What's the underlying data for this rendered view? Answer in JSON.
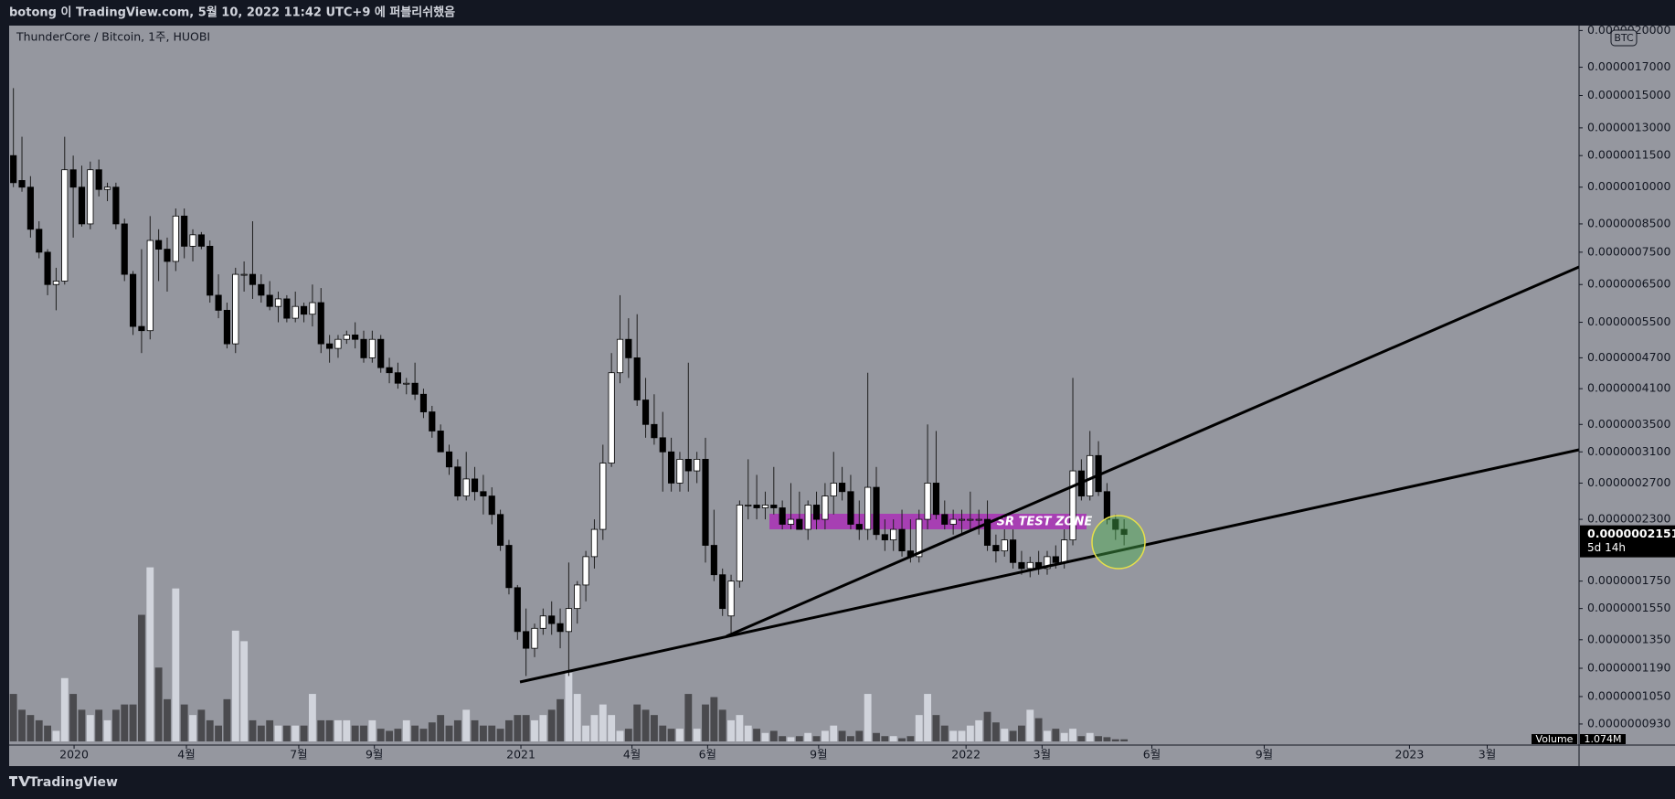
{
  "header": {
    "publish_line": "botong 이 TradingView.com, 5월 10, 2022 11:42 UTC+9 에 퍼블리쉬했음"
  },
  "footer": {
    "brand": "TradingView"
  },
  "chart_data": {
    "type": "candlestick",
    "legend_title": "ThunderCore / Bitcoin, 1주, HUOBI",
    "currency_badge": "BTC",
    "annotation": "SR TEST ZONE",
    "log_scale": true,
    "grid": false,
    "up_color": "#ffffff",
    "down_color": "#000000",
    "wick_color": "#1e1e1e",
    "volume_up_color": "#d1d4dc",
    "volume_down_color": "#4a4a4e",
    "xlim": [
      -0.5,
      183.25
    ],
    "xticks": [
      {
        "value": 7.1,
        "label": "2020"
      },
      {
        "value": 20.25,
        "label": "4월"
      },
      {
        "value": 33.4,
        "label": "7월"
      },
      {
        "value": 42.25,
        "label": "9월"
      },
      {
        "value": 59.4,
        "label": "2021"
      },
      {
        "value": 72.4,
        "label": "4월"
      },
      {
        "value": 81.25,
        "label": "6월"
      },
      {
        "value": 94.25,
        "label": "9월"
      },
      {
        "value": 111.5,
        "label": "2022"
      },
      {
        "value": 120.4,
        "label": "3월"
      },
      {
        "value": 133.25,
        "label": "6월"
      },
      {
        "value": 146.4,
        "label": "9월"
      },
      {
        "value": 163.4,
        "label": "2023"
      },
      {
        "value": 172.5,
        "label": "3월"
      }
    ],
    "ylim": [
      8.61e-08,
      2.044e-06
    ],
    "yticks": [
      {
        "value": 2e-06,
        "label": "0.0000020000"
      },
      {
        "value": 1.7e-06,
        "label": "0.0000017000"
      },
      {
        "value": 1.5e-06,
        "label": "0.0000015000"
      },
      {
        "value": 1.3e-06,
        "label": "0.0000013000"
      },
      {
        "value": 1.15e-06,
        "label": "0.0000011500"
      },
      {
        "value": 1e-06,
        "label": "0.0000010000"
      },
      {
        "value": 8.5e-07,
        "label": "0.0000008500"
      },
      {
        "value": 7.5e-07,
        "label": "0.0000007500"
      },
      {
        "value": 6.5e-07,
        "label": "0.0000006500"
      },
      {
        "value": 5.5e-07,
        "label": "0.0000005500"
      },
      {
        "value": 4.7e-07,
        "label": "0.0000004700"
      },
      {
        "value": 4.1e-07,
        "label": "0.0000004100"
      },
      {
        "value": 3.5e-07,
        "label": "0.0000003500"
      },
      {
        "value": 3.1e-07,
        "label": "0.0000003100"
      },
      {
        "value": 2.7e-07,
        "label": "0.0000002700"
      },
      {
        "value": 2.3e-07,
        "label": "0.0000002300"
      },
      {
        "value": 1.75e-07,
        "label": "0.0000001750"
      },
      {
        "value": 1.55e-07,
        "label": "0.0000001550"
      },
      {
        "value": 1.35e-07,
        "label": "0.0000001350"
      },
      {
        "value": 1.19e-07,
        "label": "0.0000001190"
      },
      {
        "value": 1.05e-07,
        "label": "0.0000001050"
      },
      {
        "value": 9.3e-08,
        "label": "0.0000000930"
      }
    ],
    "last_price": {
      "value": 2.151e-07,
      "label": "0.0000002151"
    },
    "countdown": "5d 14h",
    "volume_title": "Volume",
    "volume_last": {
      "value": 1074000.0,
      "label": "1.074M"
    },
    "vlim": [
      0,
      95000000.0
    ],
    "ohlc": [
      [
        1.15e-06,
        1.55e-06,
        1e-06,
        1.02e-06
      ],
      [
        1.03e-06,
        1.25e-06,
        9.8e-07,
        1e-06
      ],
      [
        1e-06,
        1.05e-06,
        8e-07,
        8.3e-07
      ],
      [
        8.3e-07,
        8.6e-07,
        7.3e-07,
        7.5e-07
      ],
      [
        7.5e-07,
        7.6e-07,
        6.2e-07,
        6.5e-07
      ],
      [
        6.5e-07,
        7e-07,
        5.8e-07,
        6.6e-07
      ],
      [
        6.6e-07,
        1.25e-06,
        6.5e-07,
        1.08e-06
      ],
      [
        1.08e-06,
        1.15e-06,
        8e-07,
        1e-06
      ],
      [
        1e-06,
        1.1e-06,
        8.4e-07,
        8.5e-07
      ],
      [
        8.5e-07,
        1.12e-06,
        8.3e-07,
        1.08e-06
      ],
      [
        1.08e-06,
        1.13e-06,
        9.6e-07,
        9.9e-07
      ],
      [
        9.9e-07,
        1.02e-06,
        9.4e-07,
        1e-06
      ],
      [
        1e-06,
        1.02e-06,
        8.3e-07,
        8.5e-07
      ],
      [
        8.5e-07,
        8.7e-07,
        6.6e-07,
        6.8e-07
      ],
      [
        6.8e-07,
        6.9e-07,
        5.2e-07,
        5.4e-07
      ],
      [
        5.4e-07,
        7.6e-07,
        4.8e-07,
        5.3e-07
      ],
      [
        5.3e-07,
        8.8e-07,
        5.1e-07,
        7.9e-07
      ],
      [
        7.9e-07,
        8.3e-07,
        6.6e-07,
        7.6e-07
      ],
      [
        7.6e-07,
        8e-07,
        6.3e-07,
        7.2e-07
      ],
      [
        7.2e-07,
        9.1e-07,
        6.9e-07,
        8.8e-07
      ],
      [
        8.8e-07,
        9.1e-07,
        7.3e-07,
        7.7e-07
      ],
      [
        7.7e-07,
        8.3e-07,
        7.2e-07,
        8.1e-07
      ],
      [
        8.1e-07,
        8.2e-07,
        7.6e-07,
        7.7e-07
      ],
      [
        7.7e-07,
        7.9e-07,
        6e-07,
        6.2e-07
      ],
      [
        6.2e-07,
        6.8e-07,
        5.6e-07,
        5.8e-07
      ],
      [
        5.8e-07,
        6e-07,
        4.9e-07,
        5e-07
      ],
      [
        5e-07,
        7e-07,
        4.8e-07,
        6.8e-07
      ],
      [
        6.8e-07,
        7.2e-07,
        6.3e-07,
        6.8e-07
      ],
      [
        6.8e-07,
        8.6e-07,
        6.1e-07,
        6.5e-07
      ],
      [
        6.5e-07,
        6.8e-07,
        6e-07,
        6.2e-07
      ],
      [
        6.2e-07,
        6.6e-07,
        5.8e-07,
        5.9e-07
      ],
      [
        5.9e-07,
        6.3e-07,
        5.5e-07,
        6.1e-07
      ],
      [
        6.1e-07,
        6.2e-07,
        5.5e-07,
        5.6e-07
      ],
      [
        5.6e-07,
        6.3e-07,
        5.5e-07,
        5.9e-07
      ],
      [
        5.9e-07,
        6e-07,
        5.5e-07,
        5.7e-07
      ],
      [
        5.7e-07,
        6.5e-07,
        5.4e-07,
        6e-07
      ],
      [
        6e-07,
        6.4e-07,
        4.8e-07,
        5e-07
      ],
      [
        5e-07,
        5.2e-07,
        4.6e-07,
        4.9e-07
      ],
      [
        4.9e-07,
        5.2e-07,
        4.7e-07,
        5.1e-07
      ],
      [
        5.1e-07,
        5.3e-07,
        5e-07,
        5.2e-07
      ],
      [
        5.2e-07,
        5.5e-07,
        4.9e-07,
        5.1e-07
      ],
      [
        5.1e-07,
        5.3e-07,
        4.6e-07,
        4.7e-07
      ],
      [
        4.7e-07,
        5.3e-07,
        4.6e-07,
        5.1e-07
      ],
      [
        5.1e-07,
        5.2e-07,
        4.4e-07,
        4.5e-07
      ],
      [
        4.5e-07,
        4.7e-07,
        4.2e-07,
        4.4e-07
      ],
      [
        4.4e-07,
        4.6e-07,
        4.1e-07,
        4.2e-07
      ],
      [
        4.2e-07,
        4.3e-07,
        4e-07,
        4.2e-07
      ],
      [
        4.2e-07,
        4.6e-07,
        3.9e-07,
        4e-07
      ],
      [
        4e-07,
        4.1e-07,
        3.6e-07,
        3.7e-07
      ],
      [
        3.7e-07,
        3.8e-07,
        3.3e-07,
        3.4e-07
      ],
      [
        3.4e-07,
        3.5e-07,
        3.1e-07,
        3.1e-07
      ],
      [
        3.1e-07,
        3.2e-07,
        2.8e-07,
        2.9e-07
      ],
      [
        2.9e-07,
        3e-07,
        2.5e-07,
        2.55e-07
      ],
      [
        2.55e-07,
        3.1e-07,
        2.5e-07,
        2.75e-07
      ],
      [
        2.75e-07,
        2.9e-07,
        2.5e-07,
        2.6e-07
      ],
      [
        2.6e-07,
        2.8e-07,
        2.35e-07,
        2.55e-07
      ],
      [
        2.55e-07,
        2.65e-07,
        2.25e-07,
        2.35e-07
      ],
      [
        2.35e-07,
        2.4e-07,
        2e-07,
        2.05e-07
      ],
      [
        2.05e-07,
        2.1e-07,
        1.65e-07,
        1.7e-07
      ],
      [
        1.7e-07,
        1.72e-07,
        1.35e-07,
        1.4e-07
      ],
      [
        1.4e-07,
        1.55e-07,
        1.15e-07,
        1.3e-07
      ],
      [
        1.3e-07,
        1.45e-07,
        1.25e-07,
        1.42e-07
      ],
      [
        1.42e-07,
        1.55e-07,
        1.38e-07,
        1.5e-07
      ],
      [
        1.5e-07,
        1.6e-07,
        1.38e-07,
        1.45e-07
      ],
      [
        1.45e-07,
        1.55e-07,
        1.3e-07,
        1.4e-07
      ],
      [
        1.4e-07,
        1.9e-07,
        1.15e-07,
        1.55e-07
      ],
      [
        1.55e-07,
        1.75e-07,
        1.45e-07,
        1.72e-07
      ],
      [
        1.72e-07,
        2e-07,
        1.6e-07,
        1.95e-07
      ],
      [
        1.95e-07,
        2.3e-07,
        1.85e-07,
        2.2e-07
      ],
      [
        2.2e-07,
        3.2e-07,
        2.1e-07,
        2.95e-07
      ],
      [
        2.95e-07,
        4.8e-07,
        2.9e-07,
        4.4e-07
      ],
      [
        4.4e-07,
        6.2e-07,
        4.2e-07,
        5.1e-07
      ],
      [
        5.1e-07,
        5.6e-07,
        4.3e-07,
        4.7e-07
      ],
      [
        4.7e-07,
        5.7e-07,
        3.8e-07,
        3.9e-07
      ],
      [
        3.9e-07,
        4.3e-07,
        3.3e-07,
        3.5e-07
      ],
      [
        3.5e-07,
        4e-07,
        3.2e-07,
        3.3e-07
      ],
      [
        3.3e-07,
        3.7e-07,
        2.6e-07,
        3.1e-07
      ],
      [
        3.1e-07,
        3.3e-07,
        2.6e-07,
        2.7e-07
      ],
      [
        2.7e-07,
        3.1e-07,
        2.6e-07,
        3e-07
      ],
      [
        3e-07,
        4.6e-07,
        2.6e-07,
        2.85e-07
      ],
      [
        2.85e-07,
        3.1e-07,
        2.7e-07,
        3e-07
      ],
      [
        3e-07,
        3.3e-07,
        1.9e-07,
        2.05e-07
      ],
      [
        2.05e-07,
        2.4e-07,
        1.75e-07,
        1.8e-07
      ],
      [
        1.8e-07,
        1.85e-07,
        1.5e-07,
        1.55e-07
      ],
      [
        1.5e-07,
        1.8e-07,
        1.37e-07,
        1.75e-07
      ],
      [
        1.75e-07,
        2.5e-07,
        1.7e-07,
        2.45e-07
      ],
      [
        2.45e-07,
        3e-07,
        2.3e-07,
        2.45e-07
      ],
      [
        2.45e-07,
        2.8e-07,
        2.3e-07,
        2.42e-07
      ],
      [
        2.42e-07,
        2.6e-07,
        2.3e-07,
        2.45e-07
      ],
      [
        2.45e-07,
        2.9e-07,
        2.35e-07,
        2.42e-07
      ],
      [
        2.42e-07,
        2.5e-07,
        2.2e-07,
        2.25e-07
      ],
      [
        2.25e-07,
        2.7e-07,
        2.2e-07,
        2.3e-07
      ],
      [
        2.3e-07,
        2.6e-07,
        2.2e-07,
        2.2e-07
      ],
      [
        2.2e-07,
        2.5e-07,
        2.1e-07,
        2.45e-07
      ],
      [
        2.45e-07,
        2.6e-07,
        2.2e-07,
        2.3e-07
      ],
      [
        2.3e-07,
        2.7e-07,
        2.2e-07,
        2.55e-07
      ],
      [
        2.55e-07,
        3.1e-07,
        2.35e-07,
        2.7e-07
      ],
      [
        2.7e-07,
        2.9e-07,
        2.5e-07,
        2.6e-07
      ],
      [
        2.6e-07,
        2.8e-07,
        2.2e-07,
        2.25e-07
      ],
      [
        2.25e-07,
        2.5e-07,
        2.1e-07,
        2.2e-07
      ],
      [
        2.2e-07,
        4.4e-07,
        2.1e-07,
        2.65e-07
      ],
      [
        2.65e-07,
        2.9e-07,
        2.1e-07,
        2.15e-07
      ],
      [
        2.15e-07,
        2.3e-07,
        2e-07,
        2.1e-07
      ],
      [
        2.1e-07,
        2.3e-07,
        2e-07,
        2.2e-07
      ],
      [
        2.2e-07,
        2.4e-07,
        1.95e-07,
        2e-07
      ],
      [
        2e-07,
        2.3e-07,
        1.9e-07,
        1.95e-07
      ],
      [
        1.95e-07,
        2.4e-07,
        1.9e-07,
        2.3e-07
      ],
      [
        2.3e-07,
        3.5e-07,
        2.2e-07,
        2.7e-07
      ],
      [
        2.7e-07,
        3.4e-07,
        2.3e-07,
        2.35e-07
      ],
      [
        2.35e-07,
        2.5e-07,
        2.2e-07,
        2.25e-07
      ],
      [
        2.25e-07,
        2.4e-07,
        2.15e-07,
        2.3e-07
      ],
      [
        2.3e-07,
        2.4e-07,
        2.15e-07,
        2.3e-07
      ],
      [
        2.3e-07,
        2.6e-07,
        2.2e-07,
        2.3e-07
      ],
      [
        2.3e-07,
        2.4e-07,
        2.15e-07,
        2.3e-07
      ],
      [
        2.3e-07,
        2.5e-07,
        2e-07,
        2.05e-07
      ],
      [
        2.05e-07,
        2.15e-07,
        1.9e-07,
        2e-07
      ],
      [
        2e-07,
        2.2e-07,
        1.95e-07,
        2.1e-07
      ],
      [
        2.1e-07,
        2.2e-07,
        1.85e-07,
        1.9e-07
      ],
      [
        1.9e-07,
        2e-07,
        1.8e-07,
        1.85e-07
      ],
      [
        1.85e-07,
        1.95e-07,
        1.78e-07,
        1.9e-07
      ],
      [
        1.9e-07,
        2e-07,
        1.8e-07,
        1.85e-07
      ],
      [
        1.85e-07,
        2e-07,
        1.8e-07,
        1.95e-07
      ],
      [
        1.95e-07,
        2.05e-07,
        1.85e-07,
        1.9e-07
      ],
      [
        1.9e-07,
        2.2e-07,
        1.85e-07,
        2.1e-07
      ],
      [
        2.1e-07,
        4.3e-07,
        2.05e-07,
        2.85e-07
      ],
      [
        2.85e-07,
        3e-07,
        2.5e-07,
        2.55e-07
      ],
      [
        2.55e-07,
        3.4e-07,
        2.5e-07,
        3.05e-07
      ],
      [
        3.05e-07,
        3.25e-07,
        2.55e-07,
        2.6e-07
      ],
      [
        2.6e-07,
        2.7e-07,
        2.25e-07,
        2.3e-07
      ],
      [
        2.3e-07,
        2.35e-07,
        2.1e-07,
        2.2e-07
      ],
      [
        2.2e-07,
        2.3e-07,
        2.05e-07,
        2.151e-07
      ]
    ],
    "volume": [
      24300000.0,
      16200000.0,
      13500000.0,
      10800000.0,
      8100000.0,
      5400000.0,
      32400000.0,
      24300000.0,
      16200000.0,
      13500000.0,
      16200000.0,
      10800000.0,
      16200000.0,
      18900000.0,
      18900000.0,
      64800000.0,
      89100000.0,
      37800000.0,
      21600000.0,
      78300000.0,
      18900000.0,
      13500000.0,
      16200000.0,
      10800000.0,
      8100000.0,
      21600000.0,
      56700000.0,
      51300000.0,
      10800000.0,
      8100000.0,
      10800000.0,
      8100000.0,
      8100000.0,
      8100000.0,
      8100000.0,
      24300000.0,
      10800000.0,
      10800000.0,
      10800000.0,
      10800000.0,
      8100000.0,
      8100000.0,
      10800000.0,
      6480000.0,
      5400000.0,
      6480000.0,
      10800000.0,
      8100000.0,
      6480000.0,
      9720000.0,
      13500000.0,
      8100000.0,
      10800000.0,
      16200000.0,
      10800000.0,
      8100000.0,
      8100000.0,
      6480000.0,
      10800000.0,
      13500000.0,
      13500000.0,
      10800000.0,
      13500000.0,
      16200000.0,
      21600000.0,
      35100000.0,
      24300000.0,
      8100000.0,
      13500000.0,
      18900000.0,
      13500000.0,
      5400000.0,
      6480000.0,
      18900000.0,
      16200000.0,
      13500000.0,
      8100000.0,
      6480000.0,
      6480000.0,
      24300000.0,
      6480000.0,
      18900000.0,
      22680000.0,
      16200000.0,
      10800000.0,
      13500000.0,
      8100000.0,
      6480000.0,
      4320000.0,
      5400000.0,
      2700000.0,
      2160000.0,
      2700000.0,
      4320000.0,
      2700000.0,
      5400000.0,
      8100000.0,
      5400000.0,
      2700000.0,
      5400000.0,
      24300000.0,
      4320000.0,
      2700000.0,
      2700000.0,
      1620000.0,
      2700000.0,
      13500000.0,
      24300000.0,
      13500000.0,
      8100000.0,
      5400000.0,
      5400000.0,
      8100000.0,
      10800000.0,
      15120000.0,
      9720000.0,
      6480000.0,
      5400000.0,
      8100000.0,
      16200000.0,
      11880000.0,
      5400000.0,
      6480000.0,
      4320000.0,
      6480000.0,
      2700000.0,
      4320000.0,
      2700000.0,
      2160000.0,
      1080000.0,
      1074000.0
    ]
  }
}
